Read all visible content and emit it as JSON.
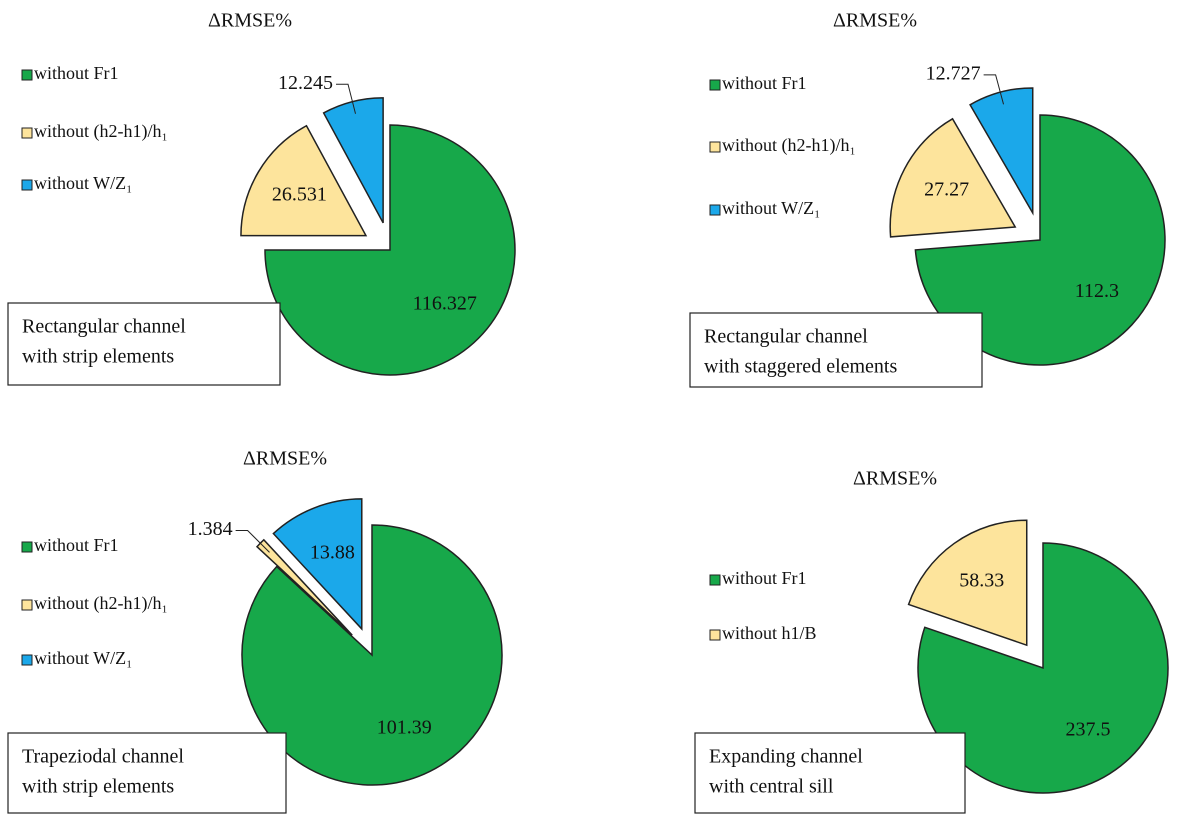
{
  "chart_data": [
    {
      "type": "pie",
      "title": "ΔRMSE%",
      "categories": [
        "without Fr1",
        "without (h2-h1)/h₁",
        "without W/Z₁"
      ],
      "values": [
        116.327,
        26.531,
        12.245
      ],
      "colors": [
        "#17a84a",
        "#fde49c",
        "#1ba8ea"
      ],
      "explode": [
        false,
        true,
        true
      ],
      "note": [
        "Rectangular channel",
        "with strip elements"
      ]
    },
    {
      "type": "pie",
      "title": "ΔRMSE%",
      "categories": [
        "without Fr1",
        "without (h2-h1)/h₁",
        "without W/Z₁"
      ],
      "values": [
        112.3,
        27.27,
        12.727
      ],
      "colors": [
        "#17a84a",
        "#fde49c",
        "#1ba8ea"
      ],
      "explode": [
        false,
        true,
        true
      ],
      "note": [
        "Rectangular channel",
        "with staggered elements"
      ]
    },
    {
      "type": "pie",
      "title": "ΔRMSE%",
      "categories": [
        "without Fr1",
        "without (h2-h1)/h₁",
        "without W/Z₁"
      ],
      "values": [
        101.39,
        1.384,
        13.88
      ],
      "colors": [
        "#17a84a",
        "#fde49c",
        "#1ba8ea"
      ],
      "explode": [
        false,
        true,
        true
      ],
      "note": [
        "Trapeziodal channel",
        "with strip elements"
      ]
    },
    {
      "type": "pie",
      "title": "ΔRMSE%",
      "categories": [
        "without Fr1",
        "without h1/B"
      ],
      "values": [
        237.5,
        58.33
      ],
      "colors": [
        "#17a84a",
        "#fde49c"
      ],
      "explode": [
        false,
        true
      ],
      "note": [
        "Expanding channel",
        "with central sill"
      ]
    }
  ]
}
